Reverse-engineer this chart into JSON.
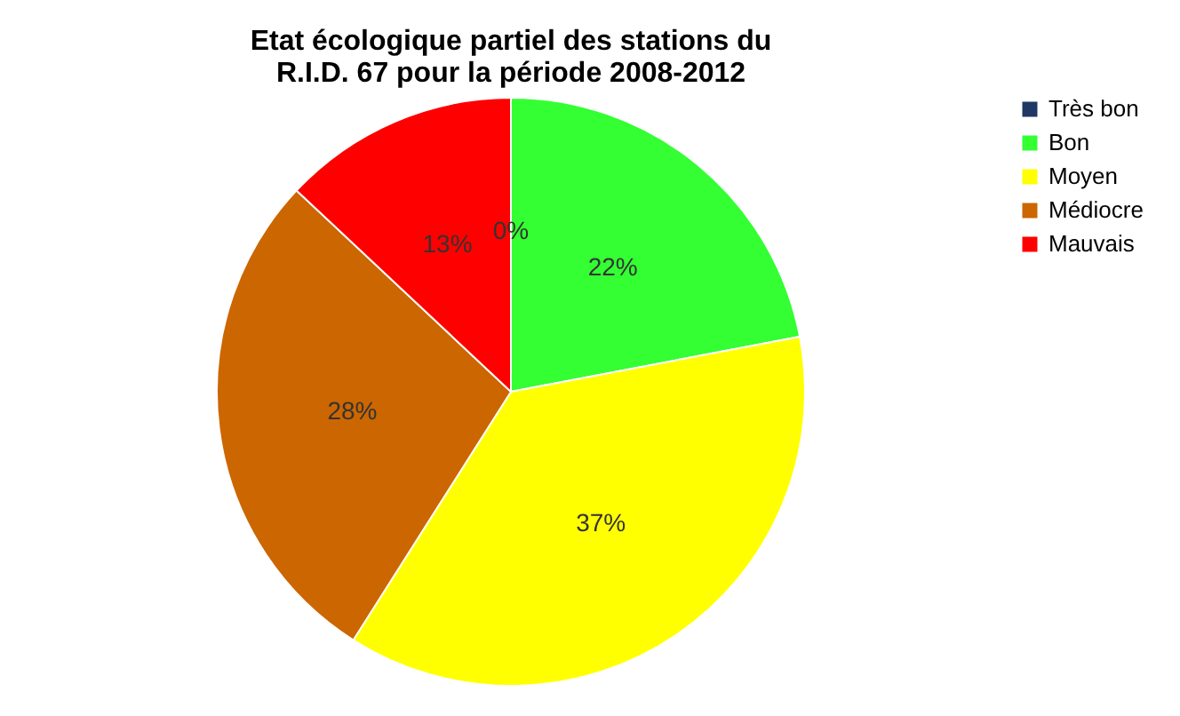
{
  "chart_data": {
    "type": "pie",
    "title": "Etat écologique partiel des stations du R.I.D. 67 pour la période 2008-2012",
    "categories": [
      "Très bon",
      "Bon",
      "Moyen",
      "Médiocre",
      "Mauvais"
    ],
    "values": [
      0,
      22,
      37,
      28,
      13
    ],
    "colors": [
      "#1f3864",
      "#33ff33",
      "#ffff00",
      "#cc6600",
      "#ff0000"
    ],
    "value_labels": [
      "0%",
      "22%",
      "37%",
      "28%",
      "13%"
    ],
    "legend": "right"
  }
}
